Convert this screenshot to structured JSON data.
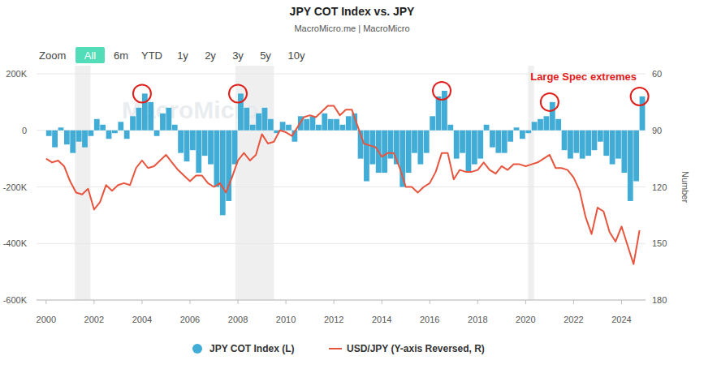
{
  "chart_data": {
    "type": "bar",
    "title": "JPY COT Index vs. JPY",
    "subtitle": "MacroMicro.me | MacroMicro",
    "watermark": "MacroMicro",
    "range_selector": {
      "label": "Zoom",
      "buttons": [
        "All",
        "6m",
        "YTD",
        "1y",
        "2y",
        "3y",
        "5y",
        "10y"
      ],
      "active": "All"
    },
    "x": [
      2000,
      2000.25,
      2000.5,
      2000.75,
      2001,
      2001.25,
      2001.5,
      2001.75,
      2002,
      2002.25,
      2002.5,
      2002.75,
      2003,
      2003.25,
      2003.5,
      2003.75,
      2004,
      2004.25,
      2004.5,
      2004.75,
      2005,
      2005.25,
      2005.5,
      2005.75,
      2006,
      2006.25,
      2006.5,
      2006.75,
      2007,
      2007.25,
      2007.5,
      2007.75,
      2008,
      2008.25,
      2008.5,
      2008.75,
      2009,
      2009.25,
      2009.5,
      2009.75,
      2010,
      2010.25,
      2010.5,
      2010.75,
      2011,
      2011.25,
      2011.5,
      2011.75,
      2012,
      2012.25,
      2012.5,
      2012.75,
      2013,
      2013.25,
      2013.5,
      2013.75,
      2014,
      2014.25,
      2014.5,
      2014.75,
      2015,
      2015.25,
      2015.5,
      2015.75,
      2016,
      2016.25,
      2016.5,
      2016.75,
      2017,
      2017.25,
      2017.5,
      2017.75,
      2018,
      2018.25,
      2018.5,
      2018.75,
      2019,
      2019.25,
      2019.5,
      2019.75,
      2020,
      2020.25,
      2020.5,
      2020.75,
      2021,
      2021.25,
      2021.5,
      2021.75,
      2022,
      2022.25,
      2022.5,
      2022.75,
      2023,
      2023.25,
      2023.5,
      2023.75,
      2024,
      2024.25,
      2024.5,
      2024.75
    ],
    "xlim": [
      1999.6,
      2025
    ],
    "xticks": [
      2000,
      2002,
      2004,
      2006,
      2008,
      2010,
      2012,
      2014,
      2016,
      2018,
      2020,
      2022,
      2024
    ],
    "ylim": [
      -600000,
      200000
    ],
    "yticks": [
      {
        "value": -600000,
        "label": "-600K"
      },
      {
        "value": -400000,
        "label": "-400K"
      },
      {
        "value": -200000,
        "label": "-200K"
      },
      0,
      {
        "value": 200000,
        "label": "200K"
      }
    ],
    "y2lim": [
      180,
      60
    ],
    "y2ticks": [
      60,
      90,
      120,
      150,
      180
    ],
    "y2_label": "Number",
    "grid": true,
    "legend": "bottom",
    "series": [
      {
        "name": "JPY COT Index (L)",
        "type": "bar",
        "color": "#41acd6",
        "values": [
          -20000,
          -60000,
          10000,
          -50000,
          -80000,
          -40000,
          -60000,
          -20000,
          40000,
          20000,
          -30000,
          -10000,
          30000,
          -30000,
          50000,
          80000,
          130000,
          100000,
          -20000,
          60000,
          80000,
          20000,
          -80000,
          -110000,
          -70000,
          -150000,
          -90000,
          -120000,
          -200000,
          -300000,
          -250000,
          -120000,
          130000,
          80000,
          20000,
          60000,
          80000,
          40000,
          -10000,
          30000,
          20000,
          -40000,
          50000,
          40000,
          50000,
          20000,
          60000,
          40000,
          40000,
          20000,
          50000,
          60000,
          -100000,
          -180000,
          -120000,
          -150000,
          -150000,
          -100000,
          -120000,
          -200000,
          -150000,
          -80000,
          -120000,
          -80000,
          50000,
          120000,
          140000,
          20000,
          -100000,
          -80000,
          -150000,
          -120000,
          -100000,
          20000,
          -60000,
          -80000,
          -80000,
          -40000,
          10000,
          -30000,
          -10000,
          30000,
          40000,
          50000,
          100000,
          40000,
          -70000,
          -100000,
          -80000,
          -100000,
          -90000,
          -70000,
          -40000,
          -90000,
          -120000,
          -100000,
          -150000,
          -250000,
          -180000,
          120000
        ]
      },
      {
        "name": "USD/JPY (Y-axis Reversed, R)",
        "type": "line",
        "color": "#e8553e",
        "axis": "y2",
        "values": [
          105,
          107,
          106,
          109,
          117,
          123,
          124,
          121,
          132,
          128,
          119,
          122,
          119,
          118,
          119,
          110,
          106,
          110,
          109,
          106,
          103,
          107,
          111,
          114,
          117,
          114,
          114,
          118,
          120,
          118,
          123,
          115,
          106,
          102,
          106,
          103,
          92,
          97,
          96,
          90,
          91,
          93,
          88,
          83,
          82,
          83,
          80,
          77,
          77,
          82,
          79,
          79,
          88,
          97,
          98,
          99,
          104,
          102,
          102,
          110,
          120,
          120,
          123,
          120,
          118,
          112,
          102,
          102,
          116,
          111,
          112,
          112,
          111,
          107,
          111,
          113,
          109,
          111,
          108,
          108,
          109,
          108,
          107,
          105,
          103,
          110,
          110,
          111,
          115,
          122,
          136,
          145,
          131,
          133,
          144,
          149,
          141,
          151,
          161,
          143
        ]
      }
    ],
    "shaded_x_ranges": [
      [
        2001.2,
        2001.85
      ],
      [
        2007.9,
        2009.5
      ],
      [
        2020.1,
        2020.35
      ]
    ],
    "annotations": [
      {
        "text": "Large Spec extremes",
        "color": "#e0201b",
        "points": [
          [
            2004,
            130000
          ],
          [
            2008,
            130000
          ],
          [
            2016.5,
            140000
          ],
          [
            2021,
            100000
          ],
          [
            2024.75,
            120000
          ]
        ]
      }
    ]
  }
}
